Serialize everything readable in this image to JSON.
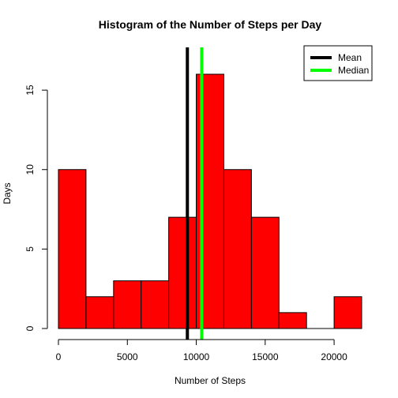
{
  "chart_data": {
    "type": "bar",
    "title": "Histogram of the Number of Steps per Day",
    "xlabel": "Number of Steps",
    "ylabel": "Days",
    "bin_edges": [
      0,
      2000,
      4000,
      6000,
      8000,
      10000,
      12000,
      14000,
      16000,
      18000,
      20000,
      22000
    ],
    "values": [
      10,
      2,
      3,
      3,
      7,
      16,
      10,
      7,
      1,
      0,
      2
    ],
    "x_ticks": [
      0,
      5000,
      10000,
      15000,
      20000
    ],
    "x_tick_labels": [
      "0",
      "5000",
      "10000",
      "15000",
      "20000"
    ],
    "y_ticks": [
      0,
      5,
      10,
      15
    ],
    "y_tick_labels": [
      "0",
      "5",
      "10",
      "15"
    ],
    "xlim": [
      0,
      22000
    ],
    "ylim": [
      0,
      16
    ],
    "bar_color": "#ff0000",
    "grid": false,
    "lines": [
      {
        "name": "Mean",
        "value": 9354,
        "color": "#000000"
      },
      {
        "name": "Median",
        "value": 10395,
        "color": "#00ff00"
      }
    ],
    "legend_placement": "top-right"
  }
}
